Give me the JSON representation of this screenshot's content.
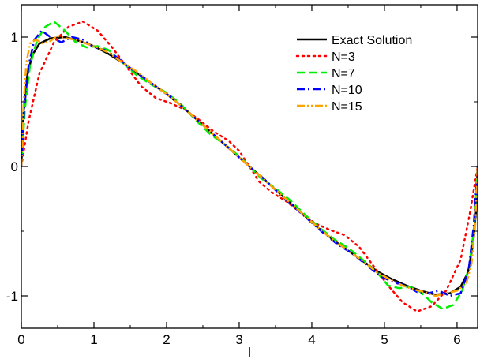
{
  "chart_data": {
    "type": "line",
    "title": "",
    "xlabel": "l",
    "ylabel": "",
    "xlim": [
      0,
      6.2832
    ],
    "ylim": [
      -1.25,
      1.25
    ],
    "x_ticks": [
      0,
      1,
      2,
      3,
      4,
      5,
      6
    ],
    "y_ticks": [
      -1,
      0,
      1
    ],
    "x_tick_labels": [
      "0",
      "1",
      "2",
      "3",
      "4",
      "5",
      "6"
    ],
    "y_tick_labels": [
      "-1",
      "0",
      "1"
    ],
    "grid": false,
    "legend_position": "top-right",
    "series": [
      {
        "name": "Exact Solution",
        "color": "#000000",
        "style": "solid",
        "points": [
          [
            0,
            0
          ],
          [
            0.03,
            0.42
          ],
          [
            0.08,
            0.7
          ],
          [
            0.15,
            0.86
          ],
          [
            0.25,
            0.95
          ],
          [
            0.4,
            0.99
          ],
          [
            0.6,
            1.0
          ],
          [
            0.8,
            0.97
          ],
          [
            1.0,
            0.93
          ],
          [
            1.2,
            0.87
          ],
          [
            1.4,
            0.8
          ],
          [
            1.6,
            0.72
          ],
          [
            1.8,
            0.64
          ],
          [
            2.0,
            0.56
          ],
          [
            2.2,
            0.47
          ],
          [
            2.4,
            0.37
          ],
          [
            2.6,
            0.27
          ],
          [
            2.8,
            0.17
          ],
          [
            3.0,
            0.07
          ],
          [
            3.14,
            0.0
          ],
          [
            3.3,
            -0.08
          ],
          [
            3.5,
            -0.18
          ],
          [
            3.7,
            -0.28
          ],
          [
            3.9,
            -0.38
          ],
          [
            4.1,
            -0.48
          ],
          [
            4.3,
            -0.57
          ],
          [
            4.5,
            -0.65
          ],
          [
            4.7,
            -0.73
          ],
          [
            4.9,
            -0.81
          ],
          [
            5.1,
            -0.87
          ],
          [
            5.3,
            -0.92
          ],
          [
            5.5,
            -0.96
          ],
          [
            5.7,
            -0.99
          ],
          [
            5.9,
            -0.98
          ],
          [
            6.05,
            -0.93
          ],
          [
            6.15,
            -0.82
          ],
          [
            6.22,
            -0.6
          ],
          [
            6.26,
            -0.35
          ],
          [
            6.283,
            0.0
          ]
        ]
      },
      {
        "name": "N=3",
        "color": "#ff0000",
        "style": "dotted",
        "points": [
          [
            0,
            0
          ],
          [
            0.1,
            0.35
          ],
          [
            0.25,
            0.72
          ],
          [
            0.45,
            0.96
          ],
          [
            0.65,
            1.08
          ],
          [
            0.85,
            1.12
          ],
          [
            1.05,
            1.05
          ],
          [
            1.25,
            0.92
          ],
          [
            1.45,
            0.77
          ],
          [
            1.65,
            0.62
          ],
          [
            1.85,
            0.53
          ],
          [
            2.05,
            0.49
          ],
          [
            2.25,
            0.44
          ],
          [
            2.45,
            0.36
          ],
          [
            2.65,
            0.27
          ],
          [
            2.85,
            0.2
          ],
          [
            3.0,
            0.12
          ],
          [
            3.14,
            0.0
          ],
          [
            3.28,
            -0.12
          ],
          [
            3.45,
            -0.2
          ],
          [
            3.65,
            -0.27
          ],
          [
            3.85,
            -0.36
          ],
          [
            4.05,
            -0.44
          ],
          [
            4.25,
            -0.49
          ],
          [
            4.45,
            -0.53
          ],
          [
            4.65,
            -0.62
          ],
          [
            4.85,
            -0.77
          ],
          [
            5.05,
            -0.92
          ],
          [
            5.25,
            -1.05
          ],
          [
            5.45,
            -1.12
          ],
          [
            5.65,
            -1.08
          ],
          [
            5.85,
            -0.96
          ],
          [
            6.05,
            -0.72
          ],
          [
            6.18,
            -0.35
          ],
          [
            6.283,
            0.0
          ]
        ]
      },
      {
        "name": "N=7",
        "color": "#00ee00",
        "style": "dashed",
        "points": [
          [
            0,
            0
          ],
          [
            0.05,
            0.45
          ],
          [
            0.12,
            0.78
          ],
          [
            0.22,
            0.98
          ],
          [
            0.33,
            1.08
          ],
          [
            0.45,
            1.12
          ],
          [
            0.6,
            1.05
          ],
          [
            0.75,
            0.96
          ],
          [
            0.9,
            0.92
          ],
          [
            1.05,
            0.93
          ],
          [
            1.2,
            0.9
          ],
          [
            1.4,
            0.8
          ],
          [
            1.6,
            0.7
          ],
          [
            1.8,
            0.63
          ],
          [
            2.0,
            0.57
          ],
          [
            2.2,
            0.48
          ],
          [
            2.4,
            0.36
          ],
          [
            2.6,
            0.25
          ],
          [
            2.8,
            0.17
          ],
          [
            3.0,
            0.08
          ],
          [
            3.14,
            0.0
          ],
          [
            3.3,
            -0.09
          ],
          [
            3.5,
            -0.17
          ],
          [
            3.7,
            -0.26
          ],
          [
            3.9,
            -0.37
          ],
          [
            4.1,
            -0.47
          ],
          [
            4.3,
            -0.56
          ],
          [
            4.5,
            -0.63
          ],
          [
            4.7,
            -0.72
          ],
          [
            4.9,
            -0.82
          ],
          [
            5.05,
            -0.92
          ],
          [
            5.2,
            -0.94
          ],
          [
            5.35,
            -0.93
          ],
          [
            5.5,
            -0.97
          ],
          [
            5.65,
            -1.05
          ],
          [
            5.8,
            -1.1
          ],
          [
            5.95,
            -1.07
          ],
          [
            6.07,
            -0.96
          ],
          [
            6.17,
            -0.77
          ],
          [
            6.24,
            -0.44
          ],
          [
            6.283,
            0.0
          ]
        ]
      },
      {
        "name": "N=10",
        "color": "#0000ff",
        "style": "dashdot",
        "points": [
          [
            0,
            0
          ],
          [
            0.04,
            0.45
          ],
          [
            0.1,
            0.78
          ],
          [
            0.18,
            0.98
          ],
          [
            0.28,
            1.05
          ],
          [
            0.4,
            1.0
          ],
          [
            0.55,
            0.96
          ],
          [
            0.7,
            1.0
          ],
          [
            0.85,
            0.98
          ],
          [
            1.0,
            0.92
          ],
          [
            1.15,
            0.9
          ],
          [
            1.3,
            0.85
          ],
          [
            1.5,
            0.76
          ],
          [
            1.7,
            0.68
          ],
          [
            1.9,
            0.6
          ],
          [
            2.1,
            0.52
          ],
          [
            2.3,
            0.42
          ],
          [
            2.5,
            0.32
          ],
          [
            2.7,
            0.22
          ],
          [
            2.9,
            0.12
          ],
          [
            3.14,
            0.0
          ],
          [
            3.35,
            -0.1
          ],
          [
            3.55,
            -0.21
          ],
          [
            3.75,
            -0.31
          ],
          [
            3.95,
            -0.41
          ],
          [
            4.15,
            -0.51
          ],
          [
            4.35,
            -0.6
          ],
          [
            4.55,
            -0.67
          ],
          [
            4.75,
            -0.76
          ],
          [
            4.95,
            -0.85
          ],
          [
            5.15,
            -0.9
          ],
          [
            5.3,
            -0.92
          ],
          [
            5.45,
            -0.97
          ],
          [
            5.6,
            -0.98
          ],
          [
            5.75,
            -0.96
          ],
          [
            5.9,
            -1.0
          ],
          [
            6.05,
            -0.98
          ],
          [
            6.16,
            -0.8
          ],
          [
            6.23,
            -0.45
          ],
          [
            6.283,
            0.0
          ]
        ]
      },
      {
        "name": "N=15",
        "color": "#ffa500",
        "style": "dashdotdot",
        "points": [
          [
            0,
            0
          ],
          [
            0.03,
            0.48
          ],
          [
            0.07,
            0.8
          ],
          [
            0.12,
            0.95
          ],
          [
            0.2,
            0.98
          ],
          [
            0.3,
            0.95
          ],
          [
            0.4,
            0.97
          ],
          [
            0.5,
            1.01
          ],
          [
            0.62,
            0.99
          ],
          [
            0.75,
            0.98
          ],
          [
            0.9,
            0.95
          ],
          [
            1.05,
            0.92
          ],
          [
            1.2,
            0.88
          ],
          [
            1.4,
            0.8
          ],
          [
            1.6,
            0.73
          ],
          [
            1.8,
            0.64
          ],
          [
            2.0,
            0.56
          ],
          [
            2.2,
            0.47
          ],
          [
            2.4,
            0.37
          ],
          [
            2.6,
            0.27
          ],
          [
            2.8,
            0.17
          ],
          [
            3.0,
            0.07
          ],
          [
            3.14,
            0.0
          ],
          [
            3.3,
            -0.08
          ],
          [
            3.5,
            -0.18
          ],
          [
            3.7,
            -0.28
          ],
          [
            3.9,
            -0.38
          ],
          [
            4.1,
            -0.48
          ],
          [
            4.3,
            -0.57
          ],
          [
            4.5,
            -0.65
          ],
          [
            4.7,
            -0.73
          ],
          [
            4.9,
            -0.82
          ],
          [
            5.1,
            -0.88
          ],
          [
            5.25,
            -0.92
          ],
          [
            5.4,
            -0.95
          ],
          [
            5.55,
            -0.97
          ],
          [
            5.7,
            -1.0
          ],
          [
            5.85,
            -0.98
          ],
          [
            6.0,
            -0.96
          ],
          [
            6.13,
            -0.9
          ],
          [
            6.2,
            -0.75
          ],
          [
            6.25,
            -0.45
          ],
          [
            6.283,
            0.0
          ]
        ]
      }
    ]
  }
}
